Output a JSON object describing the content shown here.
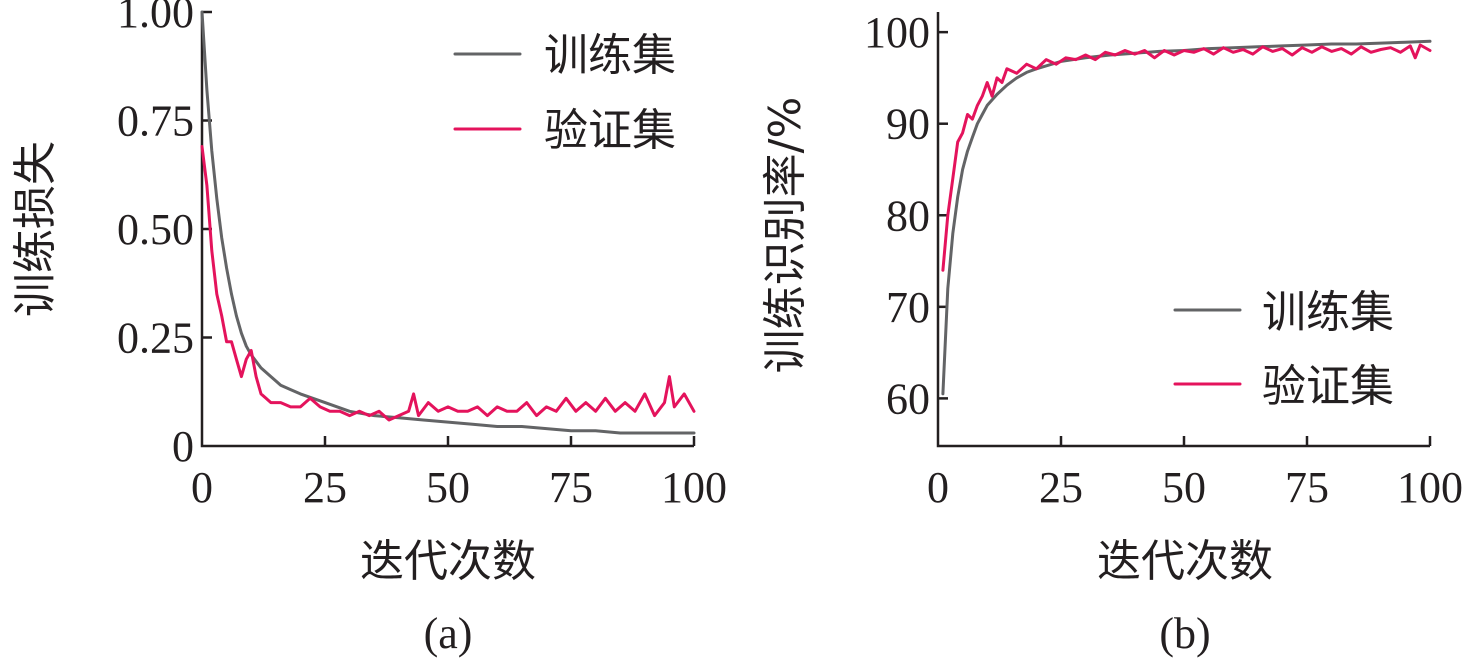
{
  "chart_data": [
    {
      "type": "line",
      "panel_label": "(a)",
      "xlabel": "迭代次数",
      "ylabel": "训练损失",
      "xlim": [
        0,
        100
      ],
      "ylim": [
        0,
        1.0
      ],
      "x_ticks": [
        "0",
        "25",
        "50",
        "75",
        "100"
      ],
      "y_ticks": [
        "0",
        "0.25",
        "0.50",
        "0.75",
        "1.00"
      ],
      "grid": false,
      "legend_position": "top-right",
      "series": [
        {
          "name": "训练集",
          "color": "#636466",
          "x": [
            0,
            1,
            2,
            3,
            4,
            5,
            6,
            7,
            8,
            9,
            10,
            12,
            14,
            16,
            18,
            20,
            25,
            30,
            35,
            40,
            45,
            50,
            55,
            60,
            65,
            70,
            75,
            80,
            85,
            90,
            95,
            100
          ],
          "y": [
            1.0,
            0.82,
            0.68,
            0.57,
            0.48,
            0.41,
            0.35,
            0.3,
            0.26,
            0.23,
            0.21,
            0.18,
            0.16,
            0.14,
            0.13,
            0.12,
            0.1,
            0.08,
            0.07,
            0.065,
            0.06,
            0.055,
            0.05,
            0.045,
            0.045,
            0.04,
            0.035,
            0.035,
            0.03,
            0.03,
            0.03,
            0.03
          ]
        },
        {
          "name": "验证集",
          "color": "#e4135c",
          "x": [
            0,
            1,
            2,
            3,
            4,
            5,
            6,
            7,
            8,
            9,
            10,
            11,
            12,
            13,
            14,
            16,
            18,
            20,
            22,
            24,
            26,
            28,
            30,
            32,
            34,
            36,
            38,
            40,
            42,
            43,
            44,
            46,
            48,
            50,
            52,
            54,
            56,
            58,
            60,
            62,
            64,
            66,
            68,
            70,
            72,
            74,
            76,
            78,
            80,
            82,
            84,
            86,
            88,
            90,
            92,
            94,
            95,
            96,
            98,
            100
          ],
          "y": [
            0.69,
            0.6,
            0.45,
            0.35,
            0.3,
            0.24,
            0.24,
            0.2,
            0.16,
            0.2,
            0.22,
            0.16,
            0.12,
            0.11,
            0.1,
            0.1,
            0.09,
            0.09,
            0.11,
            0.09,
            0.08,
            0.08,
            0.07,
            0.08,
            0.07,
            0.08,
            0.06,
            0.07,
            0.08,
            0.12,
            0.07,
            0.1,
            0.08,
            0.09,
            0.08,
            0.08,
            0.09,
            0.07,
            0.09,
            0.08,
            0.08,
            0.1,
            0.07,
            0.09,
            0.08,
            0.11,
            0.08,
            0.1,
            0.08,
            0.11,
            0.08,
            0.1,
            0.08,
            0.12,
            0.07,
            0.1,
            0.16,
            0.09,
            0.12,
            0.08
          ]
        }
      ]
    },
    {
      "type": "line",
      "panel_label": "(b)",
      "xlabel": "迭代次数",
      "ylabel": "训练识别率/%",
      "xlim": [
        0,
        100
      ],
      "ylim": [
        55,
        100
      ],
      "x_ticks": [
        "0",
        "25",
        "50",
        "75",
        "100"
      ],
      "y_ticks": [
        "60",
        "70",
        "80",
        "90",
        "100"
      ],
      "grid": false,
      "legend_position": "bottom-right",
      "series": [
        {
          "name": "训练集",
          "color": "#636466",
          "x": [
            1,
            2,
            3,
            4,
            5,
            6,
            7,
            8,
            9,
            10,
            12,
            14,
            16,
            18,
            20,
            25,
            30,
            35,
            40,
            45,
            50,
            55,
            60,
            65,
            70,
            75,
            80,
            85,
            90,
            95,
            100
          ],
          "y": [
            60.5,
            72,
            78,
            82,
            85,
            87,
            88.5,
            90,
            91,
            92,
            93.2,
            94.2,
            95,
            95.6,
            96,
            96.8,
            97.2,
            97.5,
            97.7,
            97.9,
            98,
            98.2,
            98.3,
            98.4,
            98.5,
            98.6,
            98.7,
            98.7,
            98.8,
            98.9,
            99
          ]
        },
        {
          "name": "验证集",
          "color": "#e4135c",
          "x": [
            1,
            2,
            3,
            4,
            5,
            6,
            7,
            8,
            9,
            10,
            11,
            12,
            13,
            14,
            16,
            18,
            20,
            22,
            24,
            26,
            28,
            30,
            32,
            34,
            36,
            38,
            40,
            42,
            44,
            46,
            48,
            50,
            52,
            54,
            56,
            58,
            60,
            62,
            64,
            66,
            68,
            70,
            72,
            74,
            76,
            78,
            80,
            82,
            84,
            86,
            88,
            90,
            92,
            94,
            96,
            97,
            98,
            100
          ],
          "y": [
            74,
            80,
            84,
            88,
            89,
            91,
            90.5,
            92,
            93,
            94.5,
            93,
            95,
            94.5,
            96,
            95.5,
            96.5,
            96,
            97,
            96.5,
            97.2,
            97,
            97.5,
            97,
            97.8,
            97.5,
            98,
            97.6,
            98,
            97.2,
            98,
            97.5,
            98,
            97.8,
            98.2,
            97.6,
            98.3,
            97.8,
            98.1,
            97.6,
            98.4,
            97.9,
            98.2,
            97.5,
            98.3,
            97.8,
            98.4,
            97.9,
            98.2,
            97.6,
            98.4,
            97.8,
            98.1,
            98.3,
            97.8,
            98.5,
            97.2,
            98.6,
            98
          ]
        }
      ]
    }
  ]
}
